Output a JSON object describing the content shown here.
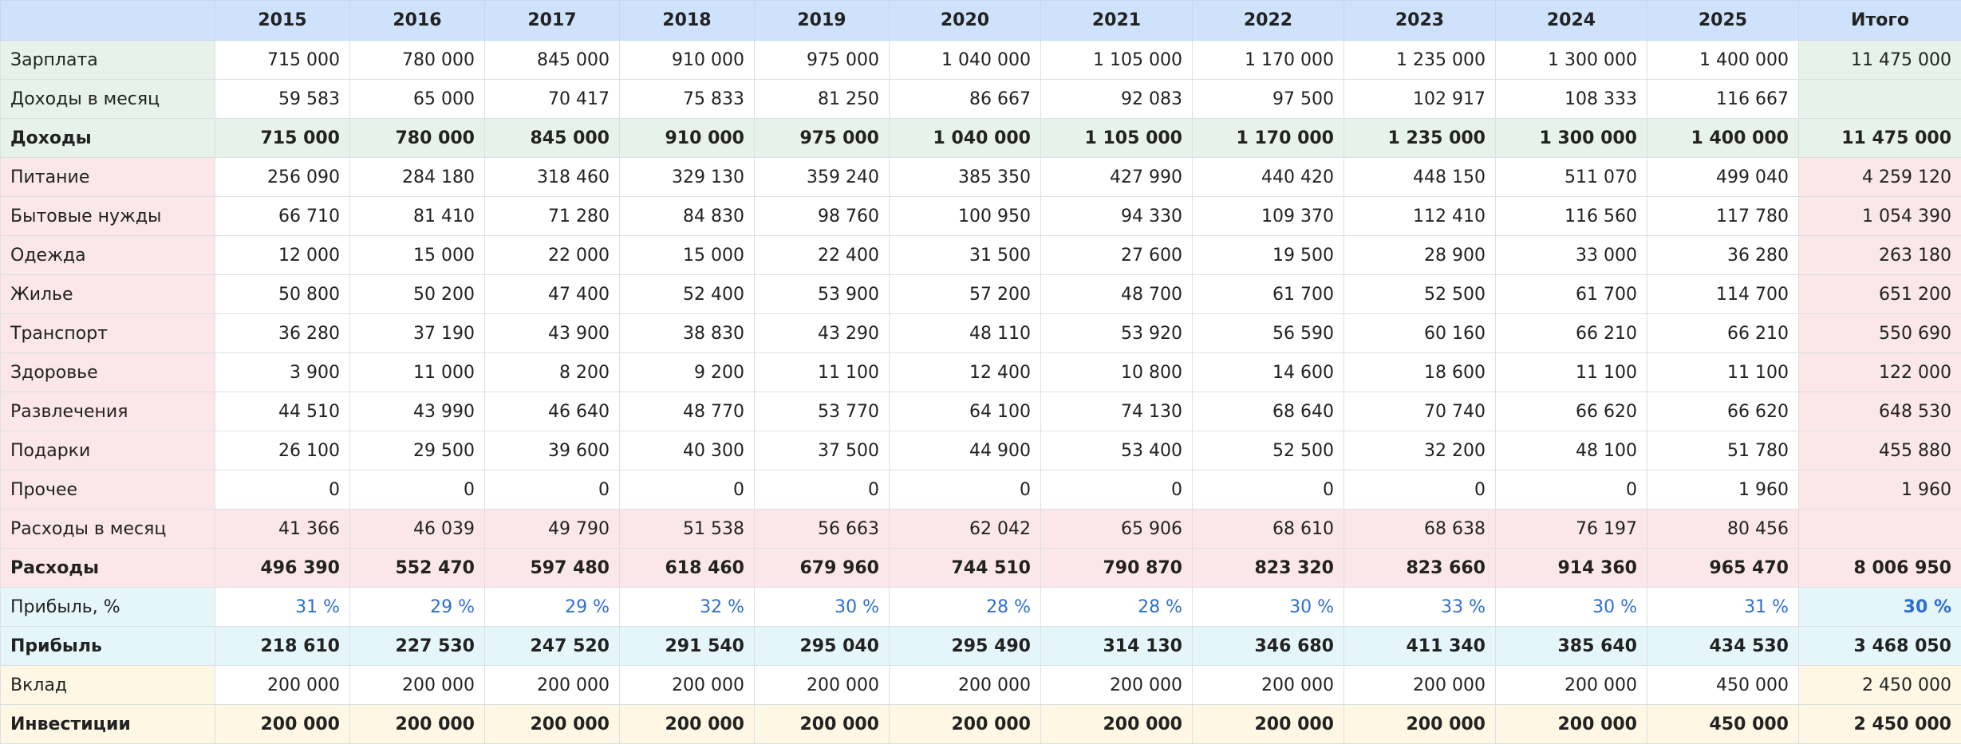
{
  "header": {
    "corner": "",
    "years": [
      "2015",
      "2016",
      "2017",
      "2018",
      "2019",
      "2020",
      "2021",
      "2022",
      "2023",
      "2024",
      "2025"
    ],
    "total": "Итого"
  },
  "rows": [
    {
      "label": "Зарплата",
      "values": [
        "715 000",
        "780 000",
        "845 000",
        "910 000",
        "975 000",
        "1 040 000",
        "1 105 000",
        "1 170 000",
        "1 235 000",
        "1 300 000",
        "1 400 000"
      ],
      "total": "11 475 000"
    },
    {
      "label": "Доходы в месяц",
      "values": [
        "59 583",
        "65 000",
        "70 417",
        "75 833",
        "81 250",
        "86 667",
        "92 083",
        "97 500",
        "102 917",
        "108 333",
        "116 667"
      ],
      "total": ""
    },
    {
      "label": "Доходы",
      "values": [
        "715 000",
        "780 000",
        "845 000",
        "910 000",
        "975 000",
        "1 040 000",
        "1 105 000",
        "1 170 000",
        "1 235 000",
        "1 300 000",
        "1 400 000"
      ],
      "total": "11 475 000"
    },
    {
      "label": "Питание",
      "values": [
        "256 090",
        "284 180",
        "318 460",
        "329 130",
        "359 240",
        "385 350",
        "427 990",
        "440 420",
        "448 150",
        "511 070",
        "499 040"
      ],
      "total": "4 259 120"
    },
    {
      "label": "Бытовые нужды",
      "values": [
        "66 710",
        "81 410",
        "71 280",
        "84 830",
        "98 760",
        "100 950",
        "94 330",
        "109 370",
        "112 410",
        "116 560",
        "117 780"
      ],
      "total": "1 054 390"
    },
    {
      "label": "Одежда",
      "values": [
        "12 000",
        "15 000",
        "22 000",
        "15 000",
        "22 400",
        "31 500",
        "27 600",
        "19 500",
        "28 900",
        "33 000",
        "36 280"
      ],
      "total": "263 180"
    },
    {
      "label": "Жилье",
      "values": [
        "50 800",
        "50 200",
        "47 400",
        "52 400",
        "53 900",
        "57 200",
        "48 700",
        "61 700",
        "52 500",
        "61 700",
        "114 700"
      ],
      "total": "651 200"
    },
    {
      "label": "Транспорт",
      "values": [
        "36 280",
        "37 190",
        "43 900",
        "38 830",
        "43 290",
        "48 110",
        "53 920",
        "56 590",
        "60 160",
        "66 210",
        "66 210"
      ],
      "total": "550 690"
    },
    {
      "label": "Здоровье",
      "values": [
        "3 900",
        "11 000",
        "8 200",
        "9 200",
        "11 100",
        "12 400",
        "10 800",
        "14 600",
        "18 600",
        "11 100",
        "11 100"
      ],
      "total": "122 000"
    },
    {
      "label": "Развлечения",
      "values": [
        "44 510",
        "43 990",
        "46 640",
        "48 770",
        "53 770",
        "64 100",
        "74 130",
        "68 640",
        "70 740",
        "66 620",
        "66 620"
      ],
      "total": "648 530"
    },
    {
      "label": "Подарки",
      "values": [
        "26 100",
        "29 500",
        "39 600",
        "40 300",
        "37 500",
        "44 900",
        "53 400",
        "52 500",
        "32 200",
        "48 100",
        "51 780"
      ],
      "total": "455 880"
    },
    {
      "label": "Прочее",
      "values": [
        "0",
        "0",
        "0",
        "0",
        "0",
        "0",
        "0",
        "0",
        "0",
        "0",
        "1 960"
      ],
      "total": "1 960"
    },
    {
      "label": "Расходы в месяц",
      "values": [
        "41 366",
        "46 039",
        "49 790",
        "51 538",
        "56 663",
        "62 042",
        "65 906",
        "68 610",
        "68 638",
        "76 197",
        "80 456"
      ],
      "total": ""
    },
    {
      "label": "Расходы",
      "values": [
        "496 390",
        "552 470",
        "597 480",
        "618 460",
        "679 960",
        "744 510",
        "790 870",
        "823 320",
        "823 660",
        "914 360",
        "965 470"
      ],
      "total": "8 006 950"
    },
    {
      "label": "Прибыль, %",
      "values": [
        "31 %",
        "29 %",
        "29 %",
        "32 %",
        "30 %",
        "28 %",
        "28 %",
        "30 %",
        "33 %",
        "30 %",
        "31 %"
      ],
      "total": "30 %"
    },
    {
      "label": "Прибыль",
      "values": [
        "218 610",
        "227 530",
        "247 520",
        "291 540",
        "295 040",
        "295 490",
        "314 130",
        "346 680",
        "411 340",
        "385 640",
        "434 530"
      ],
      "total": "3 468 050"
    },
    {
      "label": "Вклад",
      "values": [
        "200 000",
        "200 000",
        "200 000",
        "200 000",
        "200 000",
        "200 000",
        "200 000",
        "200 000",
        "200 000",
        "200 000",
        "450 000"
      ],
      "total": "2 450 000"
    },
    {
      "label": "Инвестиции",
      "values": [
        "200 000",
        "200 000",
        "200 000",
        "200 000",
        "200 000",
        "200 000",
        "200 000",
        "200 000",
        "200 000",
        "200 000",
        "450 000"
      ],
      "total": "2 450 000"
    }
  ],
  "colors": {
    "header_bg": "#cfe2fb",
    "income_bg": "#e7f3ea",
    "expense_bg": "#fbe7e9",
    "profit_bg": "#e5f6fa",
    "invest_bg": "#fdf7e3",
    "percent_text": "#2d6fd0"
  }
}
